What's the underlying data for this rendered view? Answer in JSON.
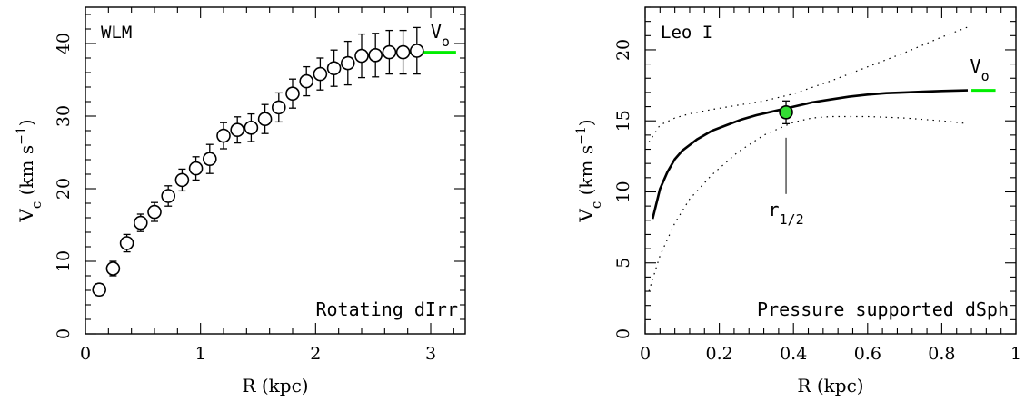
{
  "chart_data": [
    {
      "type": "scatter",
      "panel_label": "WLM",
      "annotation": "Rotating dIrr",
      "xlabel": "R (kpc)",
      "ylabel": "V_c (km s^-1)",
      "ylabel_parts": {
        "main": "V",
        "sub": "c",
        "unit": "(km s",
        "sup": "−1",
        "close": ")"
      },
      "xlim": [
        0,
        3.3
      ],
      "ylim": [
        0,
        45
      ],
      "xticks": [
        0,
        1,
        2,
        3
      ],
      "yticks": [
        0,
        10,
        20,
        30,
        40
      ],
      "xticklabels": [
        "0",
        "1",
        "2",
        "3"
      ],
      "yticklabels": [
        "0",
        "10",
        "20",
        "30",
        "40"
      ],
      "series": [
        {
          "marker": "open-circle",
          "points": [
            {
              "x": 0.12,
              "y": 6.1,
              "err": 0.8
            },
            {
              "x": 0.24,
              "y": 9.0,
              "err": 1.0
            },
            {
              "x": 0.36,
              "y": 12.5,
              "err": 1.2
            },
            {
              "x": 0.48,
              "y": 15.3,
              "err": 1.2
            },
            {
              "x": 0.6,
              "y": 16.8,
              "err": 1.3
            },
            {
              "x": 0.72,
              "y": 19.0,
              "err": 1.4
            },
            {
              "x": 0.84,
              "y": 21.2,
              "err": 1.5
            },
            {
              "x": 0.96,
              "y": 22.8,
              "err": 1.6
            },
            {
              "x": 1.08,
              "y": 24.1,
              "err": 2.0
            },
            {
              "x": 1.2,
              "y": 27.3,
              "err": 1.8
            },
            {
              "x": 1.32,
              "y": 28.1,
              "err": 1.8
            },
            {
              "x": 1.44,
              "y": 28.4,
              "err": 1.9
            },
            {
              "x": 1.56,
              "y": 29.6,
              "err": 2.0
            },
            {
              "x": 1.68,
              "y": 31.2,
              "err": 2.0
            },
            {
              "x": 1.8,
              "y": 33.1,
              "err": 2.0
            },
            {
              "x": 1.92,
              "y": 34.8,
              "err": 2.0
            },
            {
              "x": 2.04,
              "y": 35.8,
              "err": 2.2
            },
            {
              "x": 2.16,
              "y": 36.6,
              "err": 2.5
            },
            {
              "x": 2.28,
              "y": 37.3,
              "err": 3.0
            },
            {
              "x": 2.4,
              "y": 38.3,
              "err": 3.0
            },
            {
              "x": 2.52,
              "y": 38.4,
              "err": 3.0
            },
            {
              "x": 2.64,
              "y": 38.8,
              "err": 3.0
            },
            {
              "x": 2.76,
              "y": 38.8,
              "err": 3.0
            },
            {
              "x": 2.88,
              "y": 39.0,
              "err": 3.2
            }
          ]
        }
      ],
      "vo": {
        "label": "V",
        "sub": "o",
        "x_start": 2.8,
        "x_end": 3.22,
        "y": 38.8,
        "color": "#00ee00"
      }
    },
    {
      "type": "line",
      "panel_label": "Leo I",
      "annotation": "Pressure supported dSph",
      "xlabel": "R (kpc)",
      "ylabel": "V_c (km s^-1)",
      "ylabel_parts": {
        "main": "V",
        "sub": "c",
        "unit": "(km s",
        "sup": "−1",
        "close": ")"
      },
      "xlim": [
        0,
        1.0
      ],
      "ylim": [
        0,
        23
      ],
      "xticks": [
        0,
        0.2,
        0.4,
        0.6,
        0.8,
        1.0
      ],
      "yticks": [
        0,
        5,
        10,
        15,
        20
      ],
      "xticklabels": [
        "0",
        "0.2",
        "0.4",
        "0.6",
        "0.8",
        "1"
      ],
      "yticklabels": [
        "0",
        "5",
        "10",
        "15",
        "20"
      ],
      "series": [
        {
          "style": "solid",
          "x": [
            0.02,
            0.04,
            0.06,
            0.08,
            0.1,
            0.14,
            0.18,
            0.22,
            0.26,
            0.3,
            0.35,
            0.4,
            0.45,
            0.5,
            0.55,
            0.6,
            0.65,
            0.7,
            0.75,
            0.8,
            0.87
          ],
          "y": [
            8.1,
            10.2,
            11.4,
            12.3,
            12.9,
            13.7,
            14.3,
            14.7,
            15.1,
            15.4,
            15.7,
            16.0,
            16.3,
            16.5,
            16.7,
            16.85,
            16.95,
            17.0,
            17.05,
            17.1,
            17.15
          ]
        },
        {
          "style": "dotted",
          "x": [
            0.01,
            0.04,
            0.08,
            0.12,
            0.18,
            0.25,
            0.32,
            0.4,
            0.5,
            0.6,
            0.7,
            0.8,
            0.87
          ],
          "y": [
            13.5,
            14.7,
            15.2,
            15.5,
            15.8,
            16.1,
            16.4,
            16.9,
            17.8,
            18.8,
            19.8,
            20.9,
            21.6
          ]
        },
        {
          "style": "dotted",
          "x": [
            0.01,
            0.04,
            0.08,
            0.12,
            0.18,
            0.25,
            0.32,
            0.4,
            0.45,
            0.5,
            0.6,
            0.7,
            0.8,
            0.87
          ],
          "y": [
            3.0,
            5.5,
            7.8,
            9.5,
            11.2,
            12.8,
            14.0,
            14.9,
            15.2,
            15.3,
            15.3,
            15.2,
            15.0,
            14.8
          ]
        }
      ],
      "point": {
        "x": 0.38,
        "y": 15.6,
        "err": 0.8,
        "color": "#33dd33"
      },
      "r_half": {
        "label_main": "r",
        "label_sub": "1/2",
        "x": 0.38
      },
      "vo": {
        "label": "V",
        "sub": "o",
        "x_start": 0.88,
        "x_end": 0.945,
        "y": 17.15,
        "color": "#00ee00"
      }
    }
  ]
}
